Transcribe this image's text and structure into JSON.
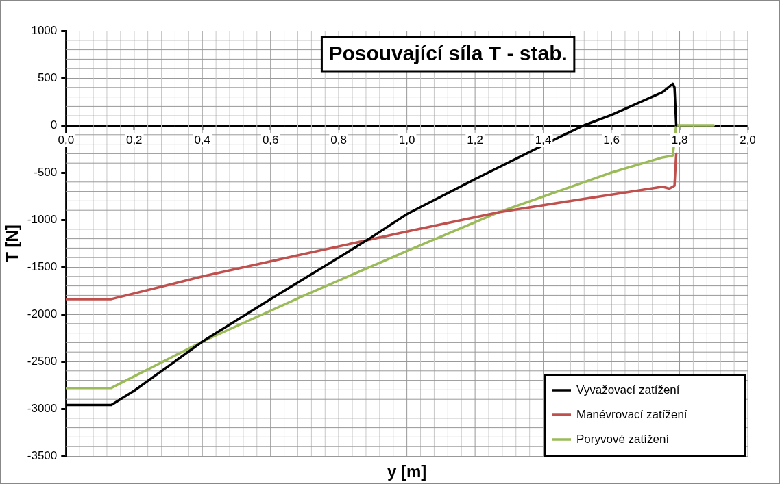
{
  "chart_data": {
    "type": "line",
    "title": "Posouvající síla T - stab.",
    "xlabel": "y [m]",
    "ylabel": "T [N]",
    "xlim": [
      0,
      2.0
    ],
    "xticks": [
      {
        "value": 0,
        "label": "0,0"
      },
      {
        "value": 0.2,
        "label": "0,2"
      },
      {
        "value": 0.4,
        "label": "0,4"
      },
      {
        "value": 0.6,
        "label": "0,6"
      },
      {
        "value": 0.8,
        "label": "0,8"
      },
      {
        "value": 1.0,
        "label": "1,0"
      },
      {
        "value": 1.2,
        "label": "1,2"
      },
      {
        "value": 1.4,
        "label": "1,4"
      },
      {
        "value": 1.6,
        "label": "1,6"
      },
      {
        "value": 1.8,
        "label": "1,8"
      },
      {
        "value": 2.0,
        "label": "2,0"
      }
    ],
    "ylim": [
      -3500,
      1000
    ],
    "yticks": [
      -3500,
      -3000,
      -2500,
      -2000,
      -1500,
      -1000,
      -500,
      0,
      500,
      1000
    ],
    "grid": true,
    "legend": "bottom right",
    "marker": "none",
    "line_style": "solid",
    "series": [
      {
        "name": "Vyvažovací zatížení",
        "color": "#000000",
        "x": [
          0,
          0.133,
          0.2,
          0.4,
          0.6,
          0.8,
          0.89,
          1.0,
          1.2,
          1.45,
          1.52,
          1.6,
          1.75,
          1.77,
          1.78,
          1.785,
          1.79
        ],
        "values": [
          -2960,
          -2960,
          -2810,
          -2290,
          -1840,
          -1400,
          -1200,
          -940,
          -570,
          -120,
          0,
          110,
          350,
          410,
          440,
          400,
          0
        ]
      },
      {
        "name": "Manévrovací zatížení",
        "color": "#c0504d",
        "x": [
          0,
          0.133,
          0.4,
          0.7,
          1.0,
          1.27,
          1.5,
          1.75,
          1.77,
          1.785,
          1.79
        ],
        "values": [
          -1840,
          -1840,
          -1600,
          -1360,
          -1125,
          -920,
          -790,
          -650,
          -670,
          -640,
          -300
        ]
      },
      {
        "name": "Poryvové zatížení",
        "color": "#9bbb59",
        "x": [
          0,
          0.133,
          0.4,
          0.7,
          1.0,
          1.27,
          1.6,
          1.75,
          1.78,
          1.79,
          1.8,
          1.9
        ],
        "values": [
          -2780,
          -2780,
          -2290,
          -1800,
          -1330,
          -920,
          -500,
          -340,
          -320,
          0,
          0,
          0
        ]
      }
    ]
  }
}
